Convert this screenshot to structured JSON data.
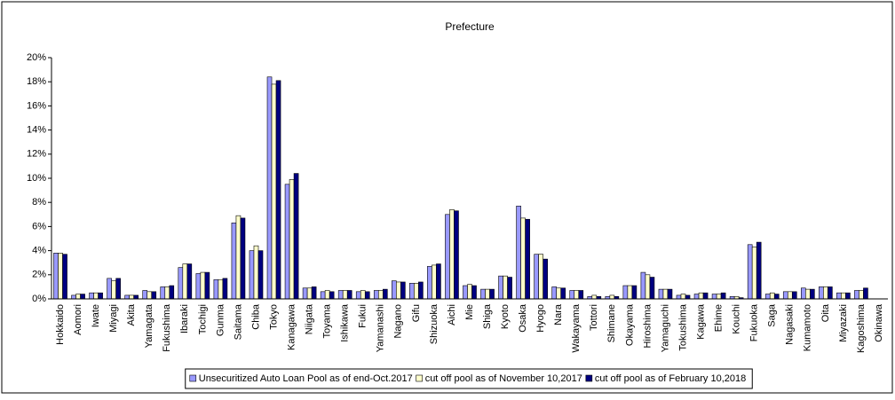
{
  "chart_data": {
    "type": "bar",
    "title": "Prefecture",
    "categories": [
      "Hokkaido",
      "Aomori",
      "Iwate",
      "Miyagi",
      "Akita",
      "Yamagata",
      "Fukushima",
      "Ibaraki",
      "Tochigi",
      "Gunma",
      "Saitama",
      "Chiba",
      "Tokyo",
      "Kanagawa",
      "Niigata",
      "Toyama",
      "Ishikawa",
      "Fukui",
      "Yamanashi",
      "Nagano",
      "Gifu",
      "Shizuoka",
      "Aichi",
      "Mie",
      "Shiga",
      "Kyoto",
      "Osaka",
      "Hyogo",
      "Nara",
      "Wakayama",
      "Tottori",
      "Shimane",
      "Okayama",
      "Hiroshima",
      "Yamaguchi",
      "Tokushima",
      "Kagawa",
      "Ehime",
      "Kouchi",
      "Fukuoka",
      "Saga",
      "Nagasaki",
      "Kumamoto",
      "Oita",
      "Miyazaki",
      "Kagoshima",
      "Okinawa"
    ],
    "series": [
      {
        "name": "Unsecuritized Auto Loan Pool as of end-Oct.2017",
        "color": "#9999ff",
        "values": [
          3.8,
          0.3,
          0.5,
          1.7,
          0.3,
          0.7,
          1.0,
          2.6,
          2.1,
          1.6,
          6.3,
          4.0,
          18.4,
          9.5,
          0.9,
          0.6,
          0.7,
          0.6,
          0.7,
          1.5,
          1.3,
          2.7,
          7.0,
          1.1,
          0.8,
          1.9,
          7.7,
          3.7,
          1.0,
          0.7,
          0.2,
          0.2,
          1.1,
          2.2,
          0.8,
          0.3,
          0.4,
          0.4,
          0.2,
          4.5,
          0.4,
          0.6,
          0.9,
          1.0,
          0.5,
          0.7,
          0.0
        ]
      },
      {
        "name": "cut off pool as of November 10,2017",
        "color": "#ffffcc",
        "values": [
          3.8,
          0.4,
          0.5,
          1.5,
          0.3,
          0.6,
          1.0,
          2.9,
          2.2,
          1.6,
          6.9,
          4.4,
          17.8,
          9.9,
          0.9,
          0.7,
          0.7,
          0.7,
          0.7,
          1.4,
          1.3,
          2.8,
          7.4,
          1.2,
          0.8,
          1.9,
          6.7,
          3.7,
          0.9,
          0.7,
          0.3,
          0.3,
          1.1,
          2.0,
          0.8,
          0.4,
          0.5,
          0.4,
          0.2,
          4.3,
          0.5,
          0.6,
          0.8,
          1.0,
          0.5,
          0.7,
          0.0
        ]
      },
      {
        "name": "cut off pool as of February 10,2018",
        "color": "#000080",
        "values": [
          3.7,
          0.4,
          0.5,
          1.7,
          0.3,
          0.6,
          1.1,
          2.9,
          2.2,
          1.7,
          6.7,
          4.0,
          18.1,
          10.4,
          1.0,
          0.6,
          0.7,
          0.6,
          0.8,
          1.4,
          1.4,
          2.9,
          7.3,
          1.1,
          0.8,
          1.8,
          6.6,
          3.3,
          0.9,
          0.7,
          0.2,
          0.2,
          1.1,
          1.8,
          0.8,
          0.3,
          0.5,
          0.5,
          0.1,
          4.7,
          0.4,
          0.6,
          0.8,
          1.0,
          0.5,
          0.9,
          0.0
        ]
      }
    ],
    "ylim": [
      0,
      20
    ],
    "yticks": [
      {
        "value": 0,
        "label": "0%"
      },
      {
        "value": 2,
        "label": "2%"
      },
      {
        "value": 4,
        "label": "4%"
      },
      {
        "value": 6,
        "label": "6%"
      },
      {
        "value": 8,
        "label": "8%"
      },
      {
        "value": 10,
        "label": "10%"
      },
      {
        "value": 12,
        "label": "12%"
      },
      {
        "value": 14,
        "label": "14%"
      },
      {
        "value": 16,
        "label": "16%"
      },
      {
        "value": 18,
        "label": "18%"
      },
      {
        "value": 20,
        "label": "20%"
      }
    ],
    "grid": false,
    "legend": "bottom"
  }
}
